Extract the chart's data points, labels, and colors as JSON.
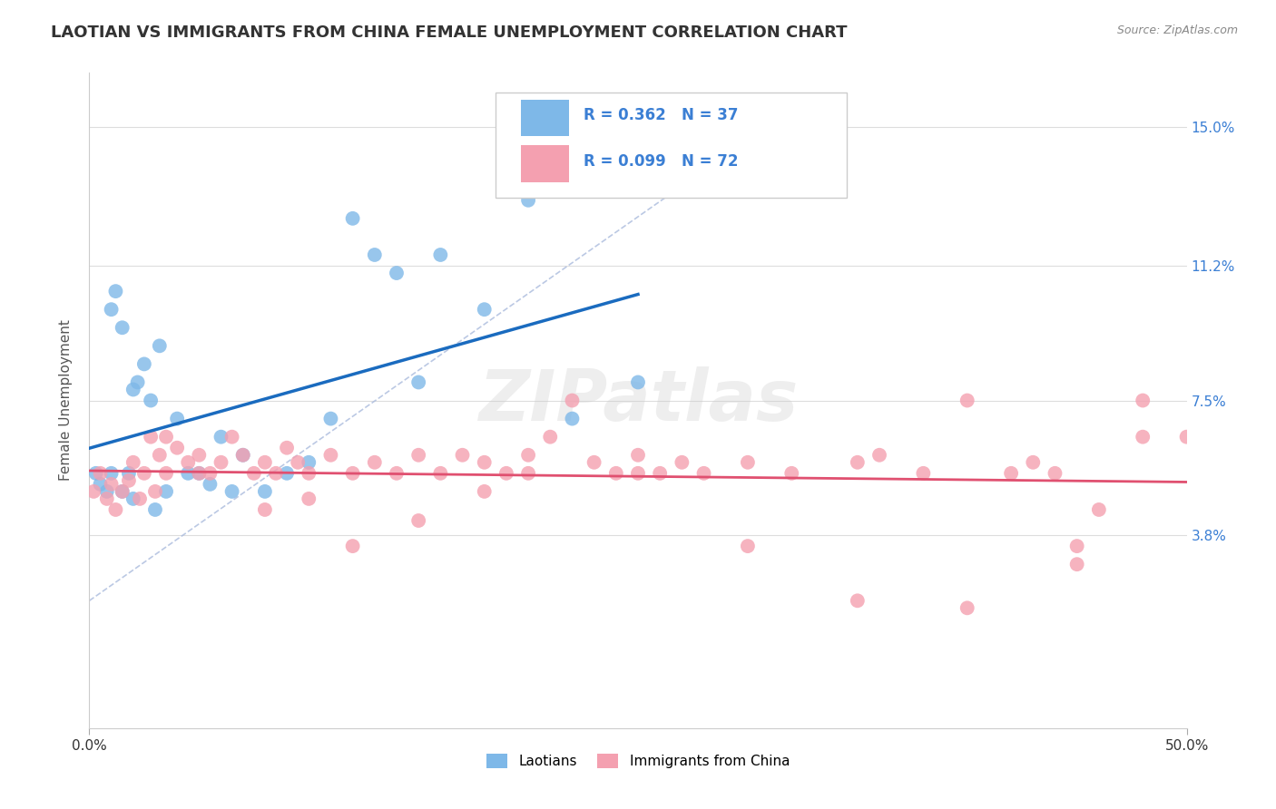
{
  "title": "LAOTIAN VS IMMIGRANTS FROM CHINA FEMALE UNEMPLOYMENT CORRELATION CHART",
  "source_text": "Source: ZipAtlas.com",
  "ylabel": "Female Unemployment",
  "xlim": [
    0.0,
    50.0
  ],
  "ylim": [
    -1.5,
    16.5
  ],
  "ytick_labels": [
    "3.8%",
    "7.5%",
    "11.2%",
    "15.0%"
  ],
  "ytick_values": [
    3.8,
    7.5,
    11.2,
    15.0
  ],
  "background_color": "#ffffff",
  "grid_color": "#dddddd",
  "laotian_color": "#7eb8e8",
  "china_color": "#f4a0b0",
  "laotian_R": 0.362,
  "laotian_N": 37,
  "china_R": 0.099,
  "china_N": 72,
  "legend_R_color": "#3b7fd4",
  "lao_line_color": "#1a6bbf",
  "china_line_color": "#e05070",
  "diag_line_color": "#aabbdd",
  "watermark": "ZIPatlas",
  "lao_x": [
    0.3,
    0.5,
    0.8,
    1.0,
    1.2,
    1.5,
    1.8,
    2.0,
    2.2,
    2.5,
    2.8,
    3.0,
    3.2,
    3.5,
    4.0,
    4.5,
    5.0,
    5.5,
    6.0,
    6.5,
    7.0,
    8.0,
    9.0,
    10.0,
    11.0,
    12.0,
    13.0,
    14.0,
    15.0,
    16.0,
    18.0,
    20.0,
    2.0,
    1.5,
    1.0,
    22.0,
    25.0
  ],
  "lao_y": [
    5.5,
    5.2,
    5.0,
    10.0,
    10.5,
    9.5,
    5.5,
    4.8,
    8.0,
    8.5,
    7.5,
    4.5,
    9.0,
    5.0,
    7.0,
    5.5,
    5.5,
    5.2,
    6.5,
    5.0,
    6.0,
    5.0,
    5.5,
    5.8,
    7.0,
    12.5,
    11.5,
    11.0,
    8.0,
    11.5,
    10.0,
    13.0,
    7.8,
    5.0,
    5.5,
    7.0,
    8.0
  ],
  "china_x": [
    0.2,
    0.5,
    0.8,
    1.0,
    1.2,
    1.5,
    1.8,
    2.0,
    2.3,
    2.5,
    2.8,
    3.0,
    3.2,
    3.5,
    4.0,
    4.5,
    5.0,
    5.5,
    6.0,
    6.5,
    7.0,
    7.5,
    8.0,
    8.5,
    9.0,
    9.5,
    10.0,
    11.0,
    12.0,
    13.0,
    14.0,
    15.0,
    16.0,
    17.0,
    18.0,
    19.0,
    20.0,
    21.0,
    22.0,
    23.0,
    24.0,
    25.0,
    26.0,
    27.0,
    28.0,
    30.0,
    32.0,
    35.0,
    36.0,
    38.0,
    40.0,
    42.0,
    43.0,
    44.0,
    45.0,
    46.0,
    48.0,
    3.5,
    5.0,
    8.0,
    10.0,
    12.0,
    15.0,
    18.0,
    20.0,
    25.0,
    30.0,
    35.0,
    40.0,
    45.0,
    48.0,
    50.0
  ],
  "china_y": [
    5.0,
    5.5,
    4.8,
    5.2,
    4.5,
    5.0,
    5.3,
    5.8,
    4.8,
    5.5,
    6.5,
    5.0,
    6.0,
    5.5,
    6.2,
    5.8,
    6.0,
    5.5,
    5.8,
    6.5,
    6.0,
    5.5,
    5.8,
    5.5,
    6.2,
    5.8,
    5.5,
    6.0,
    5.5,
    5.8,
    5.5,
    6.0,
    5.5,
    6.0,
    5.8,
    5.5,
    6.0,
    6.5,
    7.5,
    5.8,
    5.5,
    6.0,
    5.5,
    5.8,
    5.5,
    5.8,
    5.5,
    5.8,
    6.0,
    5.5,
    7.5,
    5.5,
    5.8,
    5.5,
    3.5,
    4.5,
    6.5,
    6.5,
    5.5,
    4.5,
    4.8,
    3.5,
    4.2,
    5.0,
    5.5,
    5.5,
    3.5,
    2.0,
    1.8,
    3.0,
    7.5,
    6.5
  ]
}
